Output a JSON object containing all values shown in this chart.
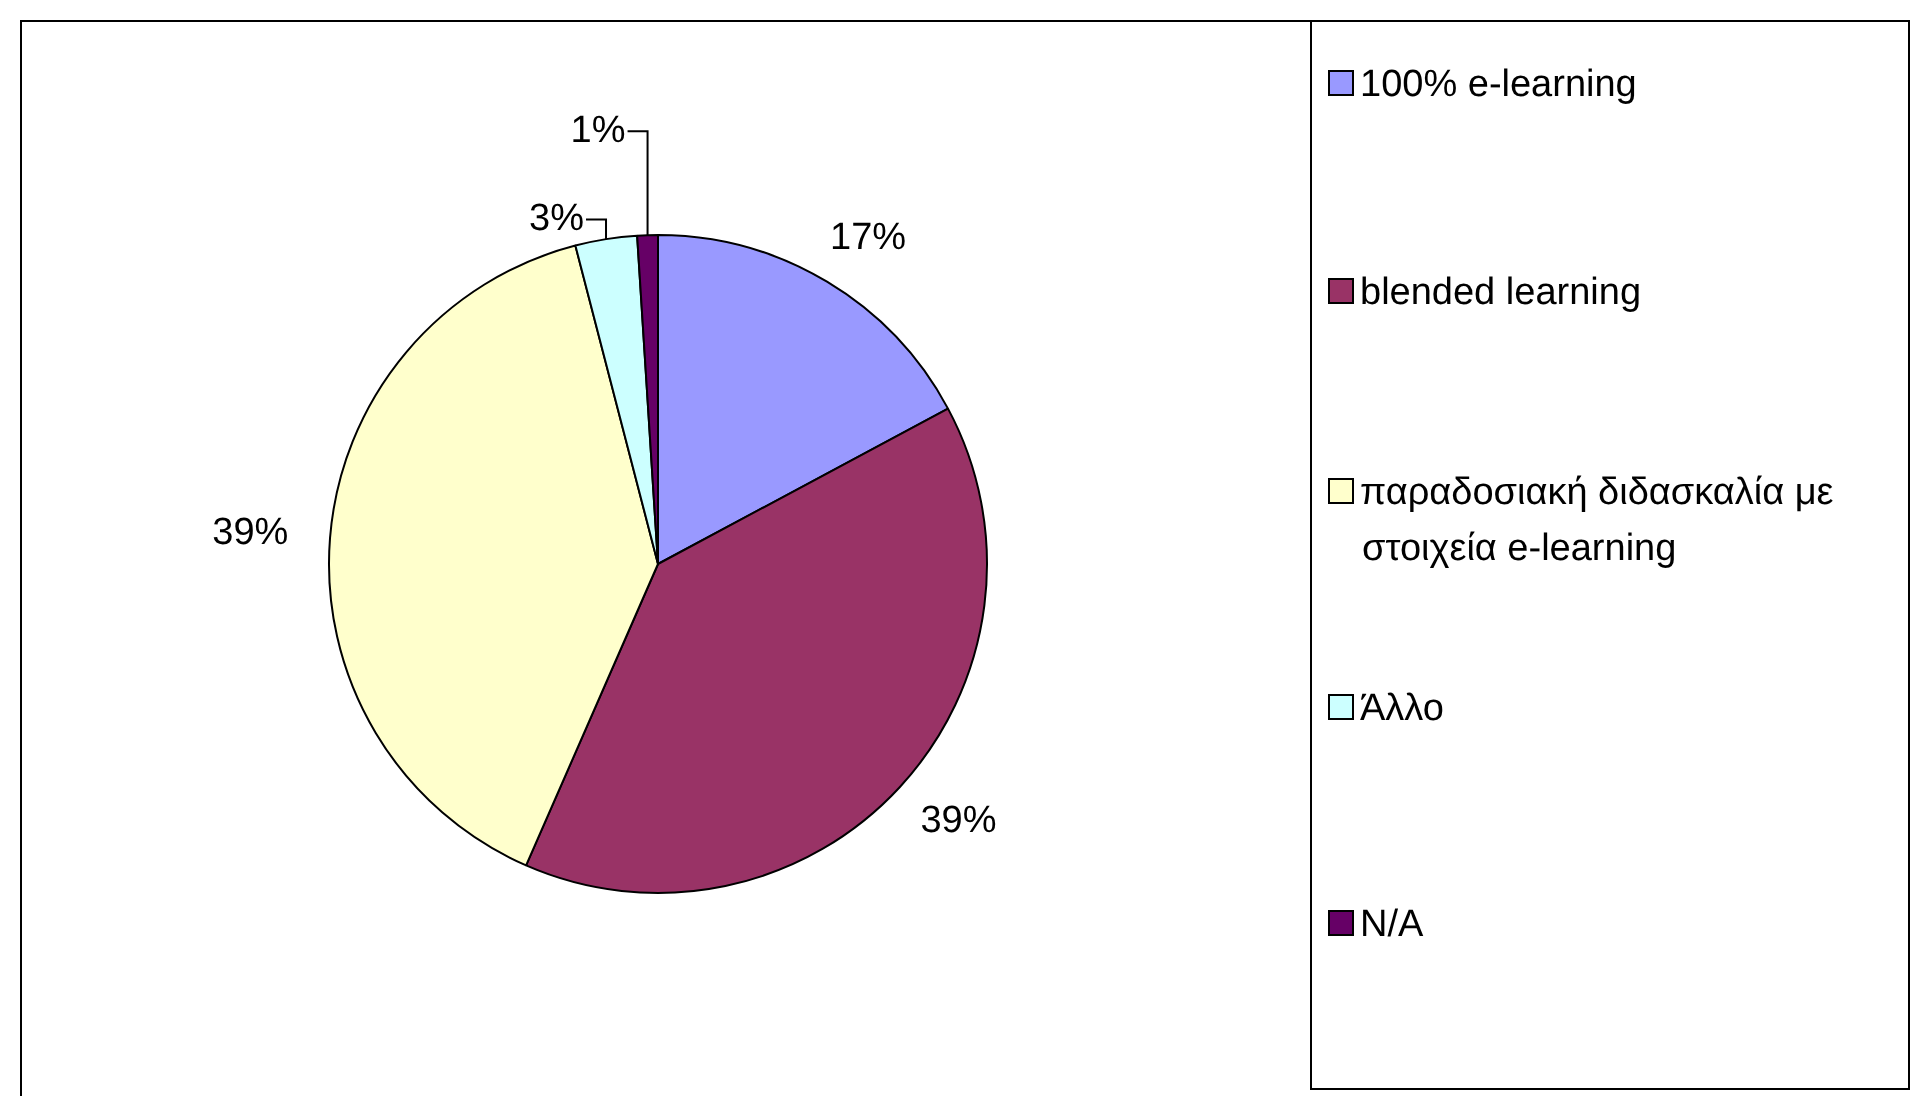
{
  "chart_data": {
    "type": "pie",
    "categories": [
      "100% e-learning",
      "blended learning",
      "παραδοσιακή διδασκαλία με στοιχεία e-learning",
      "Άλλο",
      "N/A"
    ],
    "values": [
      17,
      39,
      39,
      3,
      1
    ],
    "colors": [
      "#9999ff",
      "#993366",
      "#ffffcc",
      "#ccffff",
      "#660066"
    ],
    "value_labels": [
      "17%",
      "39%",
      "39%",
      "3%",
      "1%"
    ],
    "legend": "right"
  }
}
